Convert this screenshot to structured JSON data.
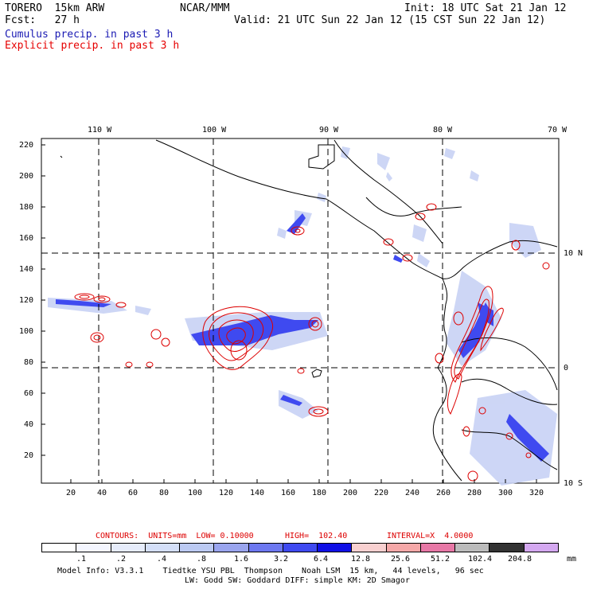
{
  "header": {
    "model": "TORERO  15km ARW",
    "org": "NCAR/MMM",
    "init": "Init: 18 UTC Sat 21 Jan 12",
    "fcst": "Fcst:   27 h",
    "valid": "Valid: 21 UTC Sun 22 Jan 12 (15 CST Sun 22 Jan 12)",
    "field1": "Cumulus precip. in past 3 h",
    "field2": "Explicit precip. in past 3 h"
  },
  "colors": {
    "field1": "#1a1ab3",
    "field2": "#e60000",
    "contour": "#dd0000",
    "fill_light": "#c8d2f5",
    "fill_mid": "#6d78f0",
    "fill_dark": "#1a1ae6"
  },
  "map": {
    "lon_labels_top": [
      "110 W",
      "100 W",
      "90 W",
      "80 W",
      "70 W"
    ],
    "lat_labels_right": [
      "10 N",
      "0",
      "10 S"
    ],
    "y_ticks": [
      "20",
      "40",
      "60",
      "80",
      "100",
      "120",
      "140",
      "160",
      "180",
      "200",
      "220"
    ],
    "x_ticks": [
      "20",
      "40",
      "60",
      "80",
      "100",
      "120",
      "140",
      "160",
      "180",
      "200",
      "220",
      "240",
      "260",
      "280",
      "300",
      "320"
    ]
  },
  "contours_info": {
    "units": "CONTOURS:  UNITS=mm  LOW= 0.10000",
    "high": "HIGH=  102.40",
    "interval": "INTERVAL=X  4.0000"
  },
  "legend": {
    "colors": [
      "#ffffff",
      "#f4f6ff",
      "#e6ecfb",
      "#d4dff8",
      "#bccaf2",
      "#9aa5ee",
      "#6d78f0",
      "#3f4af0",
      "#1010e6",
      "#f8d0d0",
      "#f5a8a8",
      "#e778a6",
      "#bcbcbc",
      "#333333",
      "#d4a8f0"
    ],
    "labels": [
      ".1",
      ".2",
      ".4",
      ".8",
      "1.6",
      "3.2",
      "6.4",
      "12.8",
      "25.6",
      "51.2",
      "102.4",
      "204.8"
    ],
    "unit": "mm"
  },
  "footer": {
    "line1": "Model Info: V3.3.1    Tiedtke YSU PBL  Thompson    Noah LSM  15 km,   44 levels,   96 sec",
    "line2": "LW: Godd SW: Goddard DIFF: simple KM: 2D Smagor"
  }
}
